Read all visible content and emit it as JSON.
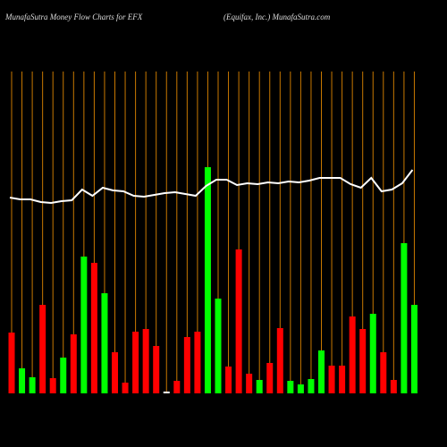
{
  "chart_data": {
    "type": "bar",
    "title": "MunafaSutra  Money Flow  Charts for EFX",
    "subtitle": "(Equifax,  Inc.) MunafaSutra.com",
    "ylim": [
      0,
      360
    ],
    "grid": true,
    "grid_color": "#c87800",
    "categories": [
      null,
      null,
      null,
      null,
      null,
      null,
      null,
      null,
      null,
      null,
      null,
      null,
      null,
      null,
      null,
      null,
      null,
      null,
      null,
      null,
      null,
      null,
      null,
      null,
      null,
      null,
      null,
      null,
      null,
      null,
      null,
      null,
      null,
      null,
      null,
      null,
      null,
      null,
      null,
      null
    ],
    "series": [
      {
        "type": "bar",
        "values": [
          68,
          28,
          18,
          99,
          17,
          40,
          66,
          153,
          146,
          112,
          46,
          12,
          69,
          72,
          53,
          2,
          14,
          63,
          69,
          253,
          106,
          30,
          161,
          22,
          15,
          34,
          73,
          14,
          10,
          16,
          48,
          31,
          31,
          86,
          72,
          89,
          46,
          15,
          168,
          99
        ],
        "colors": [
          "red",
          "lime",
          "lime",
          "red",
          "red",
          "lime",
          "red",
          "lime",
          "red",
          "lime",
          "red",
          "red",
          "red",
          "red",
          "red",
          "white",
          "red",
          "red",
          "red",
          "lime",
          "lime",
          "red",
          "red",
          "red",
          "lime",
          "red",
          "red",
          "lime",
          "lime",
          "lime",
          "lime",
          "red",
          "red",
          "red",
          "red",
          "lime",
          "red",
          "red",
          "lime",
          "lime"
        ]
      },
      {
        "type": "line",
        "color": "#ffffff",
        "values": [
          219,
          217,
          217,
          214,
          213,
          215,
          216,
          228,
          221,
          230,
          227,
          226,
          221,
          220,
          222,
          224,
          225,
          223,
          221,
          232,
          239,
          239,
          233,
          235,
          234,
          236,
          235,
          237,
          236,
          238,
          241,
          241,
          241,
          234,
          230,
          241,
          226,
          228,
          235,
          250
        ]
      }
    ]
  }
}
